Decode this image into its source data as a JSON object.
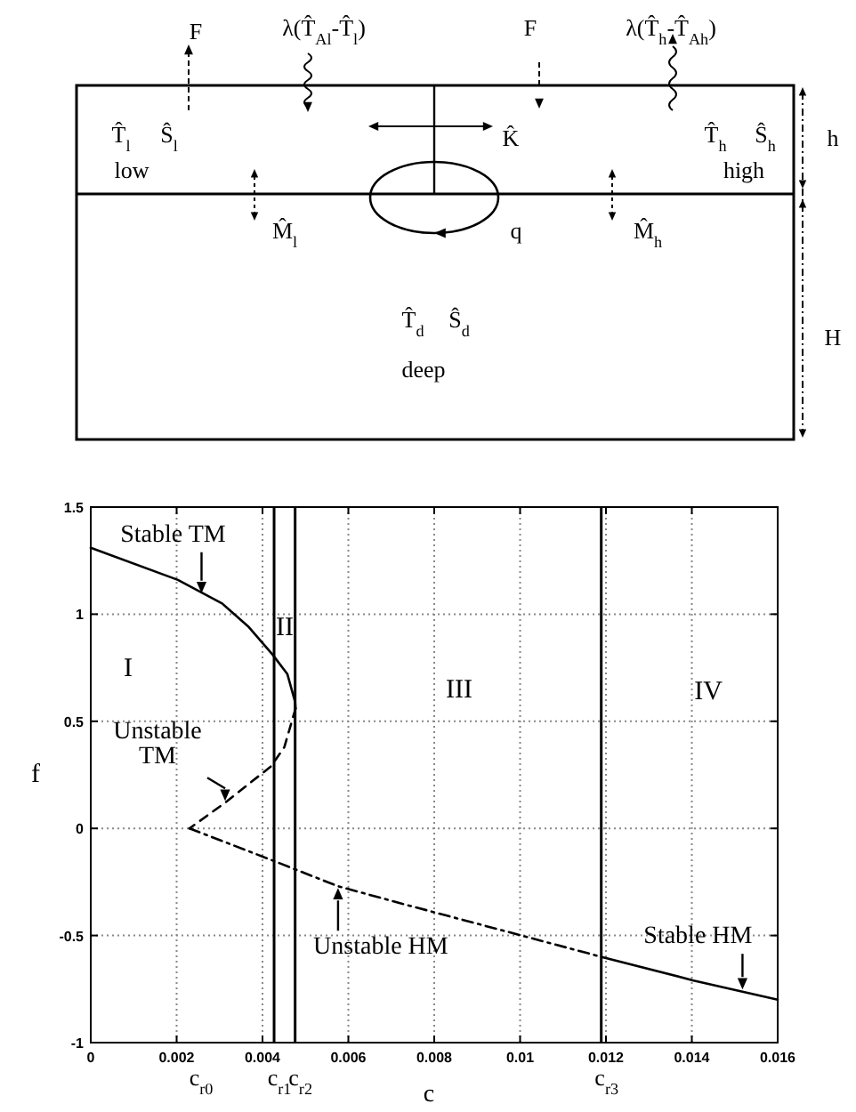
{
  "chart_data": [
    {
      "type": "other",
      "annotations": [
        "F",
        "λ(T̂$_{Al}$-T̂$_{l}$)",
        "F",
        "λ(T̂$_{h}$-T̂$_{Ah}$)",
        "T̂$_{l}$",
        "Ŝ$_{l}$",
        "low",
        "K̂",
        "T̂$_{h}$",
        "Ŝ$_{h}$",
        "high",
        "h",
        "M̂$_{l}$",
        "q",
        "M̂$_{h}$",
        "T̂$_{d}$",
        "Ŝ$_{d}$",
        "deep",
        "H"
      ]
    },
    {
      "type": "line",
      "xlabel": "c",
      "ylabel": "f",
      "xlim": [
        0,
        0.016
      ],
      "ylim": [
        -1,
        1.5
      ],
      "xticks": [
        0,
        0.002,
        0.004,
        0.006,
        0.008,
        0.01,
        0.012,
        0.014,
        0.016
      ],
      "yticks": [
        -1,
        -0.5,
        0,
        0.5,
        1,
        1.5
      ],
      "grid": true,
      "marker": "none",
      "series": [
        {
          "color": "#000000",
          "line_style": "solid",
          "x": [
            0,
            0.00203,
            0.00306,
            0.00368,
            0.00424,
            0.00458,
            0.00476,
            0.00477
          ],
          "values": [
            1.31,
            1.16,
            1.05,
            0.94,
            0.81,
            0.72,
            0.59,
            0.56
          ]
        },
        {
          "color": "#000000",
          "line_style": "dashed",
          "x": [
            0.00477,
            0.00451,
            0.0042,
            0.00313,
            0.0023
          ],
          "values": [
            0.56,
            0.38,
            0.29,
            0.12,
            0.0
          ]
        },
        {
          "color": "#000000",
          "line_style": "dashdot",
          "x": [
            0.0023,
            0.00424,
            0.00576,
            0.00741,
            0.01003,
            0.0119
          ],
          "values": [
            0.0,
            -0.15,
            -0.27,
            -0.36,
            -0.5,
            -0.6
          ]
        },
        {
          "color": "#000000",
          "line_style": "solid",
          "x": [
            0.0119,
            0.01404,
            0.016
          ],
          "values": [
            -0.6,
            -0.71,
            -0.8
          ]
        }
      ],
      "ref_lines": [
        {
          "axis": "x",
          "value": 0.00427,
          "label": "c$_{r1}$"
        },
        {
          "axis": "x",
          "value": 0.00476,
          "label": "c$_{r2}$"
        },
        {
          "axis": "x",
          "value": 0.01189,
          "label": "c$_{r3}$"
        }
      ],
      "annotations": [
        {
          "text": "Stable TM",
          "x": 0.00258,
          "y": 1.09
        },
        {
          "text": "Unstable TM",
          "x": 0.00313,
          "y": 0.12
        },
        {
          "text": "Unstable HM",
          "x": 0.00576,
          "y": -0.27
        },
        {
          "text": "Stable HM",
          "x": 0.01518,
          "y": -0.76
        },
        "I",
        "II",
        "III",
        "IV",
        "c$_{r0}$"
      ]
    }
  ]
}
